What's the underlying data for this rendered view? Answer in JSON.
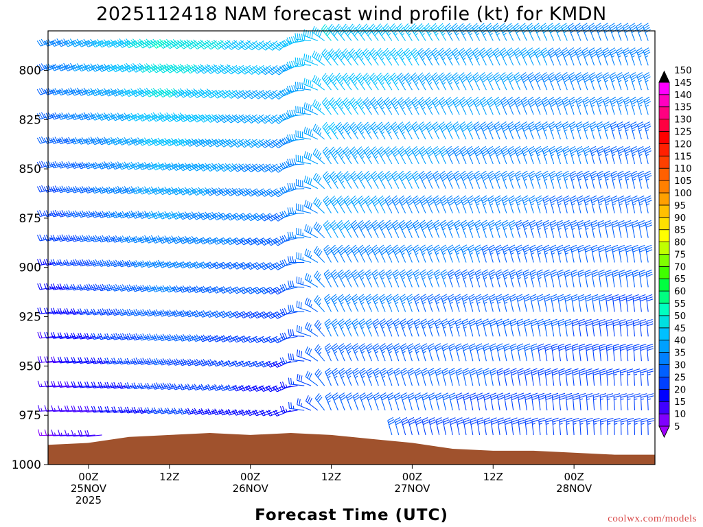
{
  "chart_data": {
    "type": "wind-barb-profile",
    "title": "2025112418 NAM forecast wind profile (kt) for KMDN",
    "xlabel": "Forecast Time (UTC)",
    "ylabel": "",
    "y_axis": {
      "units": "hPa",
      "range": [
        1000,
        780
      ],
      "ticks": [
        "800",
        "825",
        "850",
        "875",
        "900",
        "925",
        "950",
        "975",
        "1000"
      ]
    },
    "x_axis": {
      "start": "2025-11-24T18Z",
      "end": "2025-11-28T12Z",
      "ticks": [
        {
          "time": "2025-11-25T00Z",
          "label": [
            "00Z",
            "25NOV",
            "2025"
          ]
        },
        {
          "time": "2025-11-25T12Z",
          "label": [
            "12Z"
          ]
        },
        {
          "time": "2025-11-26T00Z",
          "label": [
            "00Z",
            "26NOV"
          ]
        },
        {
          "time": "2025-11-26T12Z",
          "label": [
            "12Z"
          ]
        },
        {
          "time": "2025-11-27T00Z",
          "label": [
            "00Z",
            "27NOV"
          ]
        },
        {
          "time": "2025-11-27T12Z",
          "label": [
            "12Z"
          ]
        },
        {
          "time": "2025-11-28T00Z",
          "label": [
            "00Z",
            "28NOV"
          ]
        }
      ]
    },
    "colorbar": {
      "units": "kt",
      "levels": [
        "5",
        "10",
        "15",
        "20",
        "25",
        "30",
        "35",
        "40",
        "45",
        "50",
        "55",
        "60",
        "65",
        "70",
        "75",
        "80",
        "85",
        "90",
        "95",
        "100",
        "105",
        "110",
        "115",
        "120",
        "125",
        "130",
        "135",
        "140",
        "145",
        "150"
      ],
      "colors": [
        "#a000ff",
        "#8000ff",
        "#4000ff",
        "#0000ff",
        "#0040ff",
        "#0060ff",
        "#0080ff",
        "#00a0ff",
        "#00c0ff",
        "#00e0e0",
        "#00ffc0",
        "#00ff80",
        "#00ff40",
        "#40ff00",
        "#80ff00",
        "#c0ff00",
        "#ffff00",
        "#ffe000",
        "#ffc000",
        "#ffa000",
        "#ff8000",
        "#ff6000",
        "#ff4000",
        "#ff2000",
        "#ff0000",
        "#ff0040",
        "#ff0080",
        "#ff00c0",
        "#ff00ff",
        "#000000"
      ]
    },
    "terrain_color": "#a0522d",
    "surface_pressure_hPa": {
      "time_hours_from_start": [
        0,
        6,
        12,
        18,
        24,
        30,
        36,
        42,
        48,
        54,
        60,
        66,
        72,
        78,
        84
      ],
      "values": [
        990,
        989,
        986,
        985,
        984,
        985,
        984,
        985,
        987,
        989,
        992,
        993,
        993,
        994,
        995
      ]
    },
    "wind_field_summary": {
      "direction_deg_at_hour": [
        [
          0,
          250
        ],
        [
          18,
          240
        ],
        [
          36,
          230
        ],
        [
          42,
          320
        ],
        [
          60,
          330
        ],
        [
          84,
          340
        ]
      ],
      "speed_kt_low_levels": [
        [
          0,
          12
        ],
        [
          18,
          22
        ],
        [
          36,
          18
        ],
        [
          42,
          30
        ],
        [
          84,
          25
        ]
      ],
      "speed_kt_upper_levels": [
        [
          0,
          35
        ],
        [
          18,
          55
        ],
        [
          36,
          45
        ],
        [
          42,
          50
        ],
        [
          84,
          38
        ]
      ]
    },
    "credit": "coolwx.com/models"
  }
}
